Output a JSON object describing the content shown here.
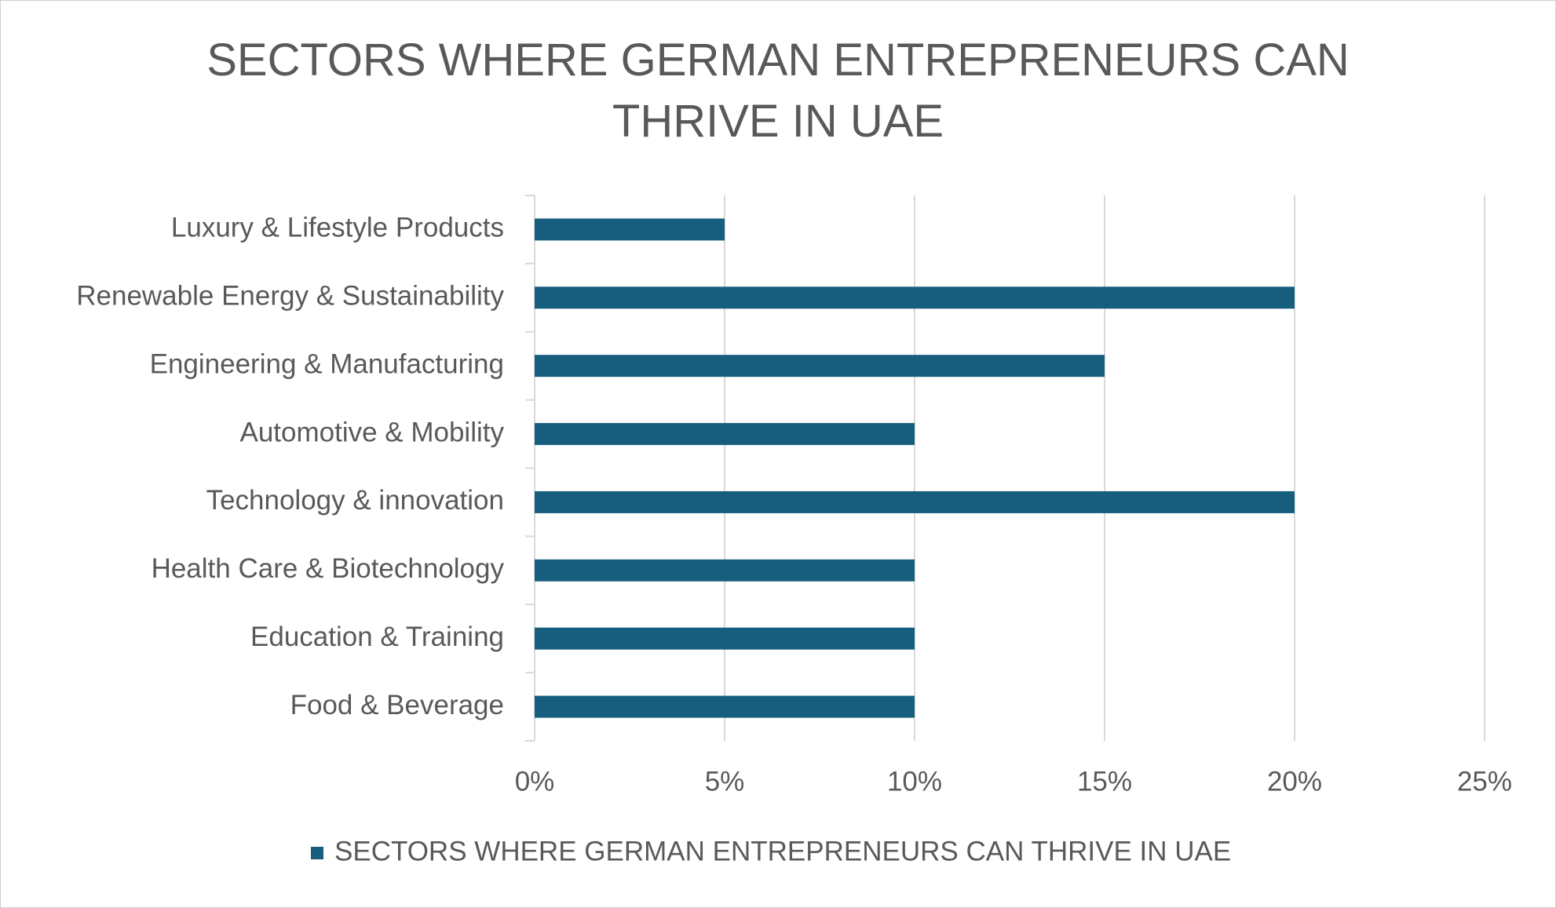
{
  "chart_data": {
    "type": "bar",
    "orientation": "horizontal",
    "title": "SECTORS WHERE GERMAN ENTREPRENEURS CAN THRIVE IN UAE",
    "categories": [
      "Luxury & Lifestyle Products",
      "Renewable Energy & Sustainability",
      "Engineering & Manufacturing",
      "Automotive & Mobility",
      "Technology & innovation",
      "Health Care & Biotechnology",
      "Education & Training",
      "Food & Beverage"
    ],
    "series": [
      {
        "name": "SECTORS WHERE GERMAN ENTREPRENEURS CAN THRIVE IN UAE",
        "color": "#175e7e",
        "values": [
          5,
          20,
          15,
          10,
          20,
          10,
          10,
          10
        ]
      }
    ],
    "xlim": [
      0,
      25
    ],
    "xticks": [
      {
        "value": 0,
        "label": "0%"
      },
      {
        "value": 5,
        "label": "5%"
      },
      {
        "value": 10,
        "label": "10%"
      },
      {
        "value": 15,
        "label": "15%"
      },
      {
        "value": 20,
        "label": "20%"
      },
      {
        "value": 25,
        "label": "25%"
      }
    ],
    "grid": true,
    "legend": "bottom"
  }
}
